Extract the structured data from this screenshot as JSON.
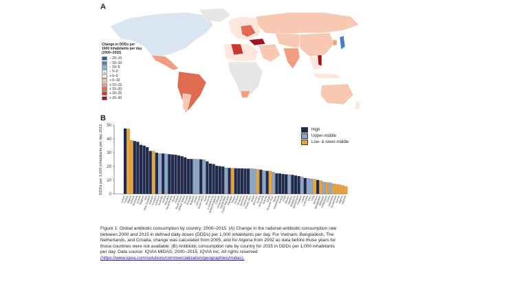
{
  "panels": {
    "a": "A",
    "b": "B"
  },
  "map": {
    "legend_title": "Change in DDDs per 1000 inhabitants per day (2000–2015)",
    "legend": [
      {
        "label": "− 20–15",
        "color": "#2c5ea8"
      },
      {
        "label": "− 15–10",
        "color": "#4b7fbf"
      },
      {
        "label": "− 10–5",
        "color": "#8fb3d9"
      },
      {
        "label": "− 5–0",
        "color": "#d9e6f2"
      },
      {
        "label": "+ 0–5",
        "color": "#fde7dc"
      },
      {
        "label": "+ 5–10",
        "color": "#f9c8b2"
      },
      {
        "label": "+ 10–15",
        "color": "#f19d7e"
      },
      {
        "label": "+ 15–20",
        "color": "#e06b50"
      },
      {
        "label": "+ 20–25",
        "color": "#c8392f"
      },
      {
        "label": "+ 25–30",
        "color": "#a3121c"
      }
    ]
  },
  "chart_data": {
    "type": "bar",
    "ylabel": "DDDs per 1,000 inhabitants per day 2015",
    "ylim": [
      0,
      50
    ],
    "yticks": [
      0,
      10,
      20,
      30,
      40,
      50
    ],
    "legend_position": "top-right",
    "series": [
      {
        "name": "High",
        "color": "#1f2a4e"
      },
      {
        "name": "Upper-middle",
        "color": "#8aa8c9"
      },
      {
        "name": "Low- & lower-middle",
        "color": "#f0a430"
      }
    ],
    "categories": [
      "Turkey",
      "Tunisia",
      "Algeria",
      "Greece",
      "Romania",
      "France",
      "Belgium",
      "Italy",
      "New Zealand",
      "Vietnam",
      "Hungary",
      "Lebanon",
      "Australia",
      "Serbia",
      "Slovakia",
      "Saudi Arabia",
      "Spain",
      "Ireland",
      "South Korea",
      "United States",
      "Croatia",
      "Portugal",
      "Bulgaria",
      "Jordan",
      "Lithuania",
      "South Africa",
      "Israel",
      "Slovenia",
      "Luxembourg",
      "United Kingdom",
      "Canada",
      "Hong Kong",
      "Kazakhstan",
      "Czech Republic",
      "Pakistan",
      "Taiwan",
      "Finland",
      "Uruguay",
      "Germany",
      "Denmark",
      "Puerto Rico",
      "Brazil",
      "Morocco",
      "Austria",
      "Venezuela",
      "Estonia",
      "Egypt",
      "Russian Fed.",
      "Japan",
      "Netherlands",
      "Kuwait",
      "Chile",
      "Mexico",
      "Sweden",
      "Singapore",
      "Switzerland",
      "Thailand",
      "Latvia",
      "Colombia",
      "Peru",
      "India",
      "Norway",
      "Bangladesh",
      "Malaysia",
      "Philippines",
      "China",
      "Indonesia",
      "Guatemala",
      "Kenya",
      "Nigeria",
      "Uganda"
    ],
    "values": [
      47.5,
      47.3,
      39.0,
      38.4,
      37.8,
      35.6,
      35.1,
      34.0,
      31.2,
      31.1,
      29.9,
      29.4,
      29.3,
      29.1,
      28.8,
      28.6,
      28.4,
      27.9,
      27.3,
      26.5,
      25.4,
      25.3,
      25.3,
      25.2,
      25.1,
      24.9,
      23.6,
      22.0,
      21.6,
      20.4,
      20.1,
      19.8,
      19.0,
      18.8,
      18.7,
      18.6,
      18.5,
      18.5,
      18.4,
      18.3,
      18.3,
      18.2,
      17.8,
      17.6,
      16.9,
      16.7,
      16.6,
      15.8,
      14.9,
      14.8,
      14.4,
      14.2,
      14.0,
      13.8,
      13.3,
      12.9,
      12.4,
      11.5,
      11.3,
      10.9,
      10.7,
      10.1,
      9.6,
      8.6,
      8.3,
      8.1,
      7.4,
      7.0,
      6.6,
      6.1,
      5.3
    ],
    "income_group": [
      0,
      2,
      2,
      0,
      0,
      0,
      0,
      0,
      0,
      2,
      0,
      1,
      0,
      1,
      0,
      0,
      0,
      0,
      0,
      0,
      0,
      0,
      1,
      1,
      0,
      1,
      0,
      0,
      0,
      0,
      0,
      0,
      1,
      0,
      2,
      0,
      0,
      0,
      0,
      0,
      1,
      1,
      2,
      0,
      1,
      0,
      2,
      1,
      0,
      0,
      0,
      0,
      1,
      0,
      0,
      0,
      1,
      0,
      1,
      1,
      2,
      0,
      2,
      1,
      2,
      1,
      2,
      2,
      2,
      2,
      2
    ]
  },
  "caption": {
    "lines": [
      "Figure 1: Global antibiotic consumption by country: 2000–2015. (A) Change in the national antibiotic consumption rate",
      "between 2000 and 2015 in defined daily doses (DDDs) per 1,000 inhabitants per day. For Vietnam, Bangladesh, The",
      "Netherlands, and Croatia, change was calculated from 2005, and for Algeria from 2002 as data before those years for",
      "those countries were not available. (B) Antibiotic consumption rate by country for 2015 in DDDs per 1,000 inhabitants",
      "per   day.   Data   source:   IQVIA   MIDAS,   2000–2015,   IQVIA   Inc.   All   rights   reserved"
    ],
    "link": "(https://www.iqvia.com/solutions/commercialization/geographies/midas)."
  }
}
